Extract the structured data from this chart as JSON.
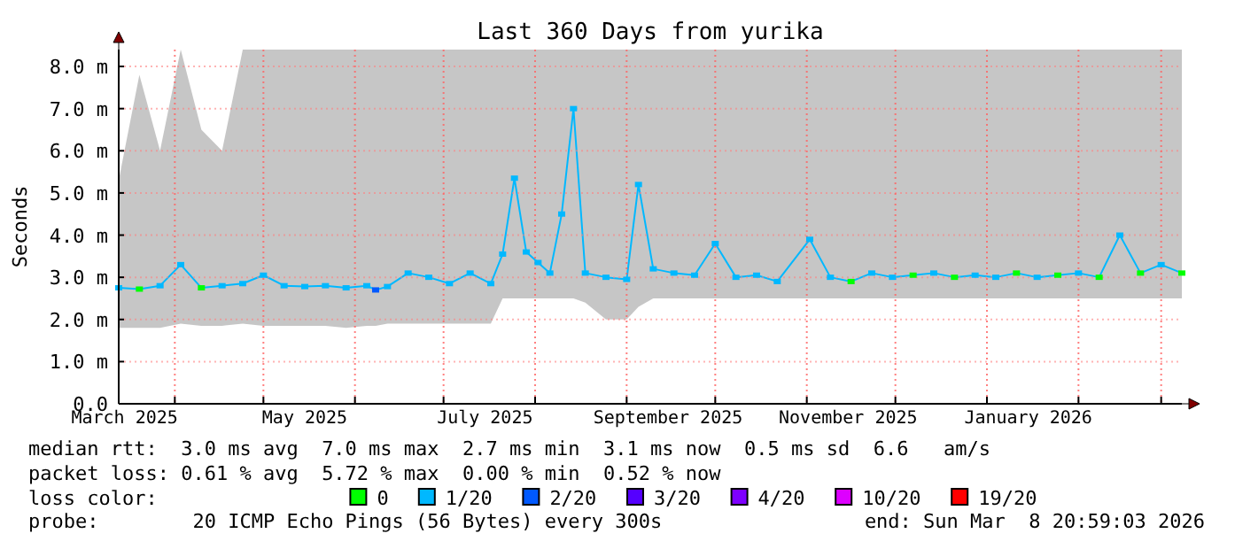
{
  "chart_data": {
    "type": "line",
    "title": "Last 360 Days from yurika",
    "ylabel": "Seconds",
    "xlim": [
      "2025-03-13",
      "2026-03-08"
    ],
    "xticks": [
      {
        "value": "2025-03-15",
        "label": "March 2025"
      },
      {
        "value": "2025-04-01",
        "label": null
      },
      {
        "value": "2025-05-01",
        "label": null
      },
      {
        "value": "2025-05-15",
        "label": "May 2025"
      },
      {
        "value": "2025-06-01",
        "label": null
      },
      {
        "value": "2025-07-01",
        "label": null
      },
      {
        "value": "2025-07-15",
        "label": "July 2025"
      },
      {
        "value": "2025-08-01",
        "label": null
      },
      {
        "value": "2025-09-01",
        "label": null
      },
      {
        "value": "2025-09-15",
        "label": "September 2025"
      },
      {
        "value": "2025-10-01",
        "label": null
      },
      {
        "value": "2025-11-01",
        "label": null
      },
      {
        "value": "2025-11-15",
        "label": "November 2025"
      },
      {
        "value": "2025-12-01",
        "label": null
      },
      {
        "value": "2026-01-01",
        "label": null
      },
      {
        "value": "2026-01-15",
        "label": "January 2026"
      },
      {
        "value": "2026-02-01",
        "label": null
      },
      {
        "value": "2026-03-01",
        "label": null
      }
    ],
    "ylim": [
      0,
      8.4
    ],
    "yticks": [
      {
        "value": 0,
        "label": "0.0"
      },
      {
        "value": 1,
        "label": "1.0 m"
      },
      {
        "value": 2,
        "label": "2.0 m"
      },
      {
        "value": 3,
        "label": "3.0 m"
      },
      {
        "value": 4,
        "label": "4.0 m"
      },
      {
        "value": 5,
        "label": "5.0 m"
      },
      {
        "value": 6,
        "label": "6.0 m"
      },
      {
        "value": 7,
        "label": "7.0 m"
      },
      {
        "value": 8,
        "label": "8.0 m"
      }
    ],
    "grid": true,
    "legend": "bottom",
    "legend_title": "loss color:",
    "marker": "square",
    "series": [
      {
        "color": "#00b8ff",
        "x": [
          "2025-03-13",
          "2025-03-20",
          "2025-03-27",
          "2025-04-03",
          "2025-04-10",
          "2025-04-17",
          "2025-04-24",
          "2025-05-01",
          "2025-05-08",
          "2025-05-15",
          "2025-05-22",
          "2025-05-29",
          "2025-06-05",
          "2025-06-08",
          "2025-06-12",
          "2025-06-19",
          "2025-06-26",
          "2025-07-03",
          "2025-07-10",
          "2025-07-17",
          "2025-07-21",
          "2025-07-25",
          "2025-07-29",
          "2025-08-02",
          "2025-08-06",
          "2025-08-10",
          "2025-08-14",
          "2025-08-18",
          "2025-08-25",
          "2025-09-01",
          "2025-09-05",
          "2025-09-10",
          "2025-09-17",
          "2025-09-24",
          "2025-10-01",
          "2025-10-08",
          "2025-10-15",
          "2025-10-22",
          "2025-11-02",
          "2025-11-09",
          "2025-11-16",
          "2025-11-23",
          "2025-11-30",
          "2025-12-07",
          "2025-12-14",
          "2025-12-21",
          "2025-12-28",
          "2026-01-04",
          "2026-01-11",
          "2026-01-18",
          "2026-01-25",
          "2026-02-01",
          "2026-02-08",
          "2026-02-15",
          "2026-02-22",
          "2026-03-01",
          "2026-03-08"
        ],
        "values": [
          2.75,
          2.72,
          2.8,
          3.3,
          2.75,
          2.8,
          2.85,
          3.05,
          2.8,
          2.78,
          2.8,
          2.75,
          2.8,
          2.7,
          2.78,
          3.1,
          3.0,
          2.85,
          3.1,
          2.85,
          3.55,
          5.35,
          3.6,
          3.35,
          3.1,
          4.5,
          7.0,
          3.1,
          3.0,
          2.95,
          5.2,
          3.2,
          3.1,
          3.05,
          3.8,
          3.0,
          3.05,
          2.9,
          3.9,
          3.0,
          2.9,
          3.1,
          3.0,
          3.05,
          3.1,
          3.0,
          3.05,
          3.0,
          3.1,
          3.0,
          3.05,
          3.1,
          3.0,
          4.0,
          3.1,
          3.3,
          3.1
        ],
        "colors": [
          "#00b8ff",
          "#00ff00",
          "#00b8ff",
          "#00b8ff",
          "#00ff00",
          "#00b8ff",
          "#00b8ff",
          "#00b8ff",
          "#00b8ff",
          "#00b8ff",
          "#00b8ff",
          "#00b8ff",
          "#00b8ff",
          "#0059ff",
          "#00b8ff",
          "#00b8ff",
          "#00b8ff",
          "#00b8ff",
          "#00b8ff",
          "#00b8ff",
          "#00b8ff",
          "#00b8ff",
          "#00b8ff",
          "#00b8ff",
          "#00b8ff",
          "#00b8ff",
          "#00b8ff",
          "#00b8ff",
          "#00b8ff",
          "#00b8ff",
          "#00b8ff",
          "#00b8ff",
          "#00b8ff",
          "#00b8ff",
          "#00b8ff",
          "#00b8ff",
          "#00b8ff",
          "#00b8ff",
          "#00b8ff",
          "#00b8ff",
          "#00ff00",
          "#00b8ff",
          "#00b8ff",
          "#00ff00",
          "#00b8ff",
          "#00ff00",
          "#00b8ff",
          "#00b8ff",
          "#00ff00",
          "#00b8ff",
          "#00ff00",
          "#00b8ff",
          "#00ff00",
          "#00b8ff",
          "#00ff00",
          "#00b8ff",
          "#00ff00"
        ],
        "lower": [
          1.8,
          1.8,
          1.8,
          1.9,
          1.85,
          1.85,
          1.9,
          1.85,
          1.85,
          1.85,
          1.85,
          1.8,
          1.85,
          1.85,
          1.9,
          1.9,
          1.9,
          1.9,
          1.9,
          1.9,
          2.5,
          2.5,
          2.5,
          2.5,
          2.5,
          2.5,
          2.5,
          2.4,
          2.0,
          2.0,
          2.3,
          2.5,
          2.5,
          2.5,
          2.5,
          2.5,
          2.5,
          2.5,
          2.5,
          2.5,
          2.5,
          2.5,
          2.5,
          2.5,
          2.5,
          2.5,
          2.5,
          2.5,
          2.5,
          2.5,
          2.5,
          2.5,
          2.5,
          2.5,
          2.5,
          2.5,
          2.5
        ],
        "upper": [
          5.3,
          7.8,
          6.0,
          8.4,
          6.5,
          6.0,
          8.4,
          8.4,
          8.4,
          8.4,
          8.4,
          8.4,
          8.4,
          8.4,
          8.4,
          8.4,
          8.4,
          8.4,
          8.4,
          8.4,
          8.4,
          8.4,
          8.4,
          8.4,
          8.4,
          8.4,
          8.4,
          8.4,
          8.4,
          8.4,
          8.4,
          8.4,
          8.4,
          8.4,
          8.4,
          8.4,
          8.4,
          8.4,
          8.4,
          8.4,
          8.4,
          8.4,
          8.4,
          8.4,
          8.4,
          8.4,
          8.4,
          8.4,
          8.4,
          8.4,
          8.4,
          8.4,
          8.4,
          8.4,
          8.4,
          8.4,
          8.4
        ]
      },
      {
        "name": "0",
        "color": "#00ff00"
      },
      {
        "name": "1/20",
        "color": "#00b8ff"
      },
      {
        "name": "2/20",
        "color": "#0059ff"
      },
      {
        "name": "3/20",
        "color": "#5500ff"
      },
      {
        "name": "4/20",
        "color": "#7e00ff"
      },
      {
        "name": "10/20",
        "color": "#dd00ff"
      },
      {
        "name": "19/20",
        "color": "#ff0000"
      }
    ],
    "annotations": [
      "median rtt:  3.0 ms avg  7.0 ms max  2.7 ms min  3.1 ms now  0.5 ms sd  6.6   am/s",
      "packet loss: 0.61 % avg  5.72 % max  0.00 % min  0.52 % now",
      "probe:        20 ICMP Echo Pings (56 Bytes) every 300s",
      "end: Sun Mar  8 20:59:03 2026"
    ]
  }
}
